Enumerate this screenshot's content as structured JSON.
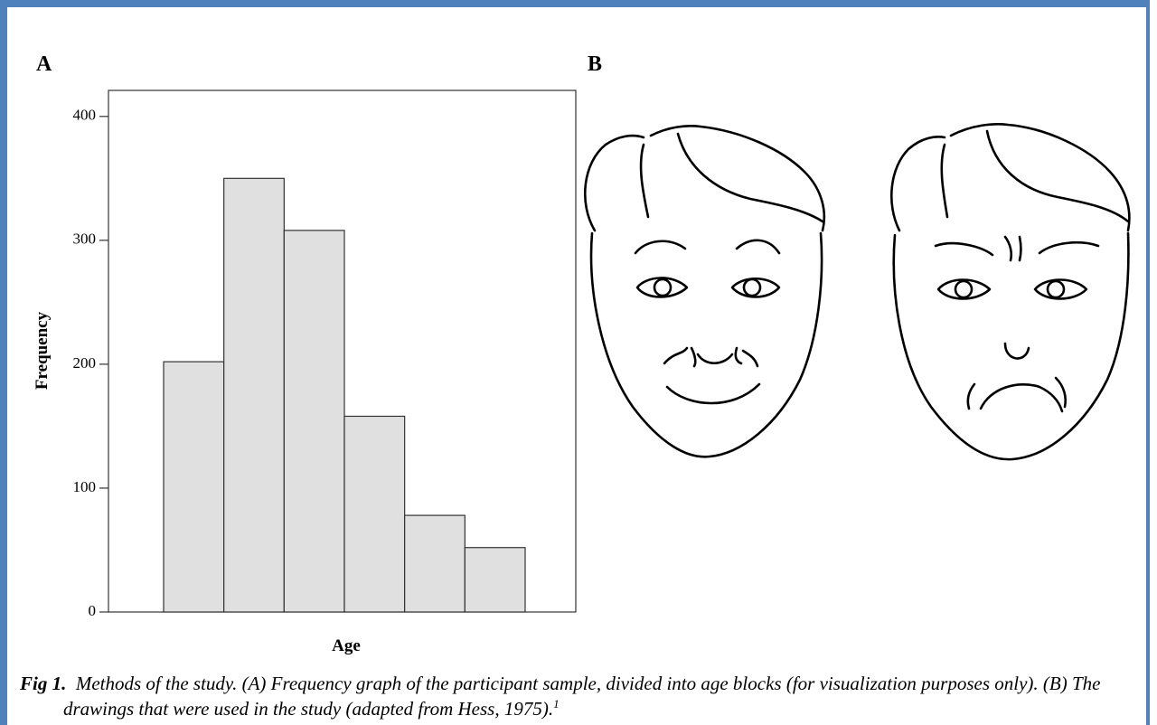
{
  "panel_a_label": "A",
  "panel_b_label": "B",
  "chart_data": {
    "type": "bar",
    "categories": [
      null,
      null,
      null,
      null,
      null,
      null
    ],
    "values": [
      202,
      350,
      308,
      158,
      78,
      52
    ],
    "color": "#e0e0e0",
    "xlabel": "Age",
    "ylabel": "Frequency",
    "ylim": [
      0,
      421
    ],
    "yticks": [
      0,
      100,
      200,
      300,
      400
    ],
    "grid": false
  },
  "caption": {
    "label": "Fig 1.",
    "text": "Methods of the study. (A) Frequency graph of the participant sample, divided into age blocks (for visualization purposes only). (B) The drawings that were used in the study (adapted from Hess, 1975).",
    "superscript": "1"
  }
}
